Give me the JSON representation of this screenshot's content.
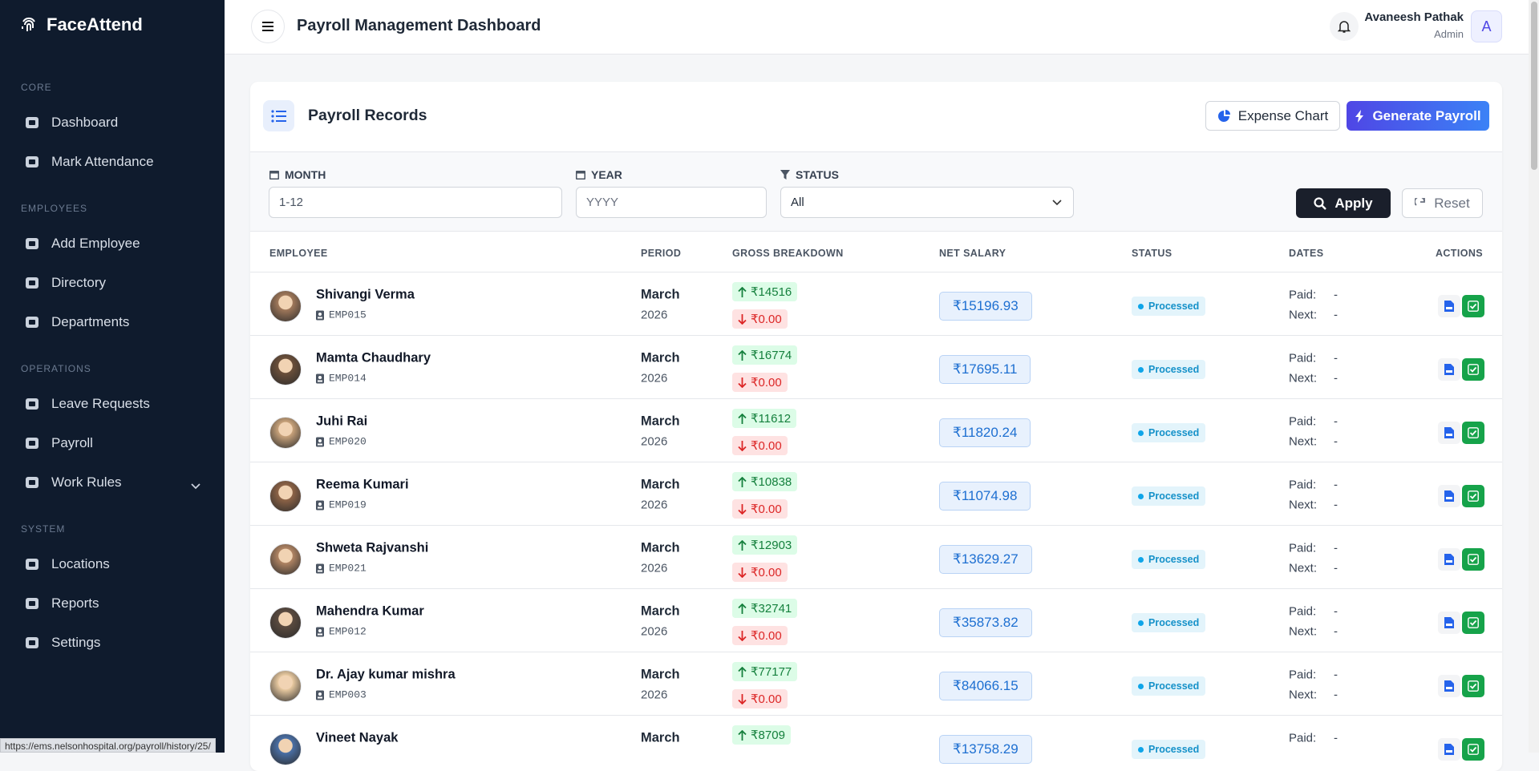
{
  "sidebar": {
    "brand": "FaceAttend",
    "sections": [
      {
        "label": "CORE",
        "items": [
          "Dashboard",
          "Mark Attendance"
        ]
      },
      {
        "label": "EMPLOYEES",
        "items": [
          "Add Employee",
          "Directory",
          "Departments"
        ]
      },
      {
        "label": "OPERATIONS",
        "items": [
          "Leave Requests",
          "Payroll",
          "Work Rules"
        ]
      },
      {
        "label": "SYSTEM",
        "items": [
          "Locations",
          "Reports",
          "Settings"
        ]
      }
    ]
  },
  "header": {
    "title": "Payroll Management Dashboard",
    "user_name": "Avaneesh Pathak",
    "user_role": "Admin",
    "avatar_initial": "A"
  },
  "card": {
    "title": "Payroll Records",
    "expense_button": "Expense Chart",
    "generate_button": "Generate Payroll"
  },
  "filters": {
    "month_label": "MONTH",
    "month_placeholder": "1-12",
    "year_label": "YEAR",
    "year_placeholder": "YYYY",
    "status_label": "STATUS",
    "status_value": "All",
    "apply": "Apply",
    "reset": "Reset"
  },
  "table": {
    "columns": [
      "EMPLOYEE",
      "PERIOD",
      "GROSS BREAKDOWN",
      "NET SALARY",
      "STATUS",
      "DATES",
      "ACTIONS"
    ],
    "date_labels": [
      "Paid:",
      "Next:"
    ],
    "rows": [
      {
        "name": "Shivangi Verma",
        "id": "EMP015",
        "month": "March",
        "year": "2026",
        "gross": "₹14516",
        "deduction": "₹0.00",
        "net": "₹15196.93",
        "status": "Processed",
        "paid": "-",
        "next": "-"
      },
      {
        "name": "Mamta Chaudhary",
        "id": "EMP014",
        "month": "March",
        "year": "2026",
        "gross": "₹16774",
        "deduction": "₹0.00",
        "net": "₹17695.11",
        "status": "Processed",
        "paid": "-",
        "next": "-"
      },
      {
        "name": "Juhi Rai",
        "id": "EMP020",
        "month": "March",
        "year": "2026",
        "gross": "₹11612",
        "deduction": "₹0.00",
        "net": "₹11820.24",
        "status": "Processed",
        "paid": "-",
        "next": "-"
      },
      {
        "name": "Reema Kumari",
        "id": "EMP019",
        "month": "March",
        "year": "2026",
        "gross": "₹10838",
        "deduction": "₹0.00",
        "net": "₹11074.98",
        "status": "Processed",
        "paid": "-",
        "next": "-"
      },
      {
        "name": "Shweta Rajvanshi",
        "id": "EMP021",
        "month": "March",
        "year": "2026",
        "gross": "₹12903",
        "deduction": "₹0.00",
        "net": "₹13629.27",
        "status": "Processed",
        "paid": "-",
        "next": "-"
      },
      {
        "name": "Mahendra Kumar",
        "id": "EMP012",
        "month": "March",
        "year": "2026",
        "gross": "₹32741",
        "deduction": "₹0.00",
        "net": "₹35873.82",
        "status": "Processed",
        "paid": "-",
        "next": "-"
      },
      {
        "name": "Dr. Ajay kumar mishra",
        "id": "EMP003",
        "month": "March",
        "year": "2026",
        "gross": "₹77177",
        "deduction": "₹0.00",
        "net": "₹84066.15",
        "status": "Processed",
        "paid": "-",
        "next": "-"
      },
      {
        "name": "Vineet Nayak",
        "month": "March",
        "gross": "₹8709",
        "net": "₹13758.29",
        "status": "Processed",
        "paid": "-"
      }
    ]
  },
  "status_bar": {
    "url": "https://ems.nelsonhospital.org/payroll/history/25/"
  }
}
